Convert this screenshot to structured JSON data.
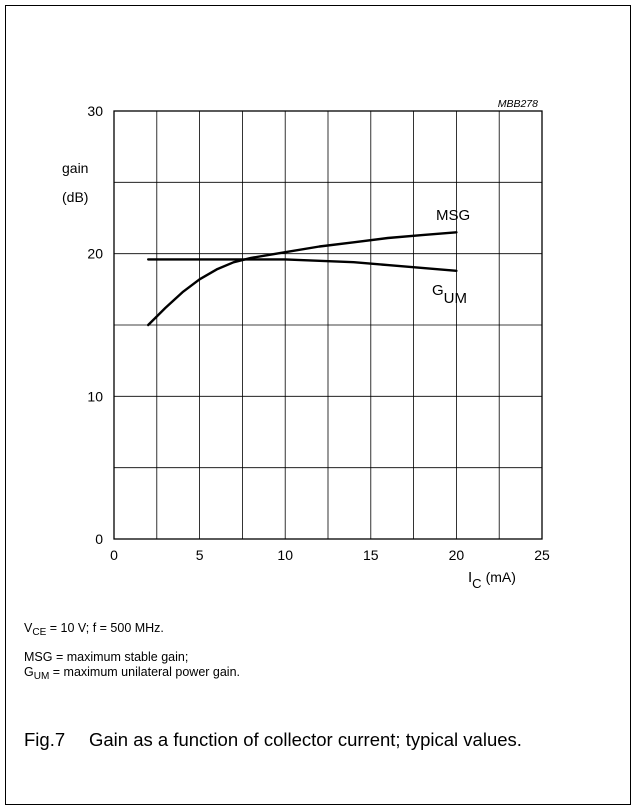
{
  "chart_data": {
    "type": "line",
    "code": "MBB278",
    "ylabel": "gain",
    "yunit": "(dB)",
    "xlabel_main": "I",
    "xlabel_sub": "C",
    "xlabel_unit": "(mA)",
    "xlim": [
      0,
      25
    ],
    "ylim": [
      0,
      30
    ],
    "xticks": [
      0,
      5,
      10,
      15,
      20,
      25
    ],
    "yticks": [
      0,
      10,
      20,
      30
    ],
    "xgrid": [
      2.5,
      5,
      7.5,
      10,
      12.5,
      15,
      17.5,
      20,
      22.5
    ],
    "ygrid": [
      5,
      10,
      15,
      20,
      25
    ],
    "grid": true,
    "series": [
      {
        "name": "MSG",
        "x": [
          2,
          3,
          4,
          5,
          6,
          7,
          8,
          9,
          10,
          12,
          14,
          16,
          18,
          20
        ],
        "y": [
          15.0,
          16.2,
          17.3,
          18.2,
          18.9,
          19.4,
          19.7,
          19.9,
          20.1,
          20.5,
          20.8,
          21.1,
          21.3,
          21.5
        ]
      },
      {
        "name": "G",
        "name_sub": "UM",
        "x": [
          2,
          4,
          6,
          8,
          10,
          12,
          14,
          16,
          18,
          20
        ],
        "y": [
          19.6,
          19.6,
          19.6,
          19.6,
          19.6,
          19.5,
          19.4,
          19.2,
          19.0,
          18.8
        ]
      }
    ]
  },
  "notes": {
    "cond_v": "V",
    "cond_sub": "CE",
    "cond_rest": " = 10 V; f = 500 MHz.",
    "msg_def": "MSG = maximum stable gain;",
    "gum_g": "G",
    "gum_sub": "UM",
    "gum_rest": " = maximum unilateral power gain."
  },
  "caption": {
    "number": "Fig.7",
    "text": "Gain as a function of collector current; typical values."
  }
}
